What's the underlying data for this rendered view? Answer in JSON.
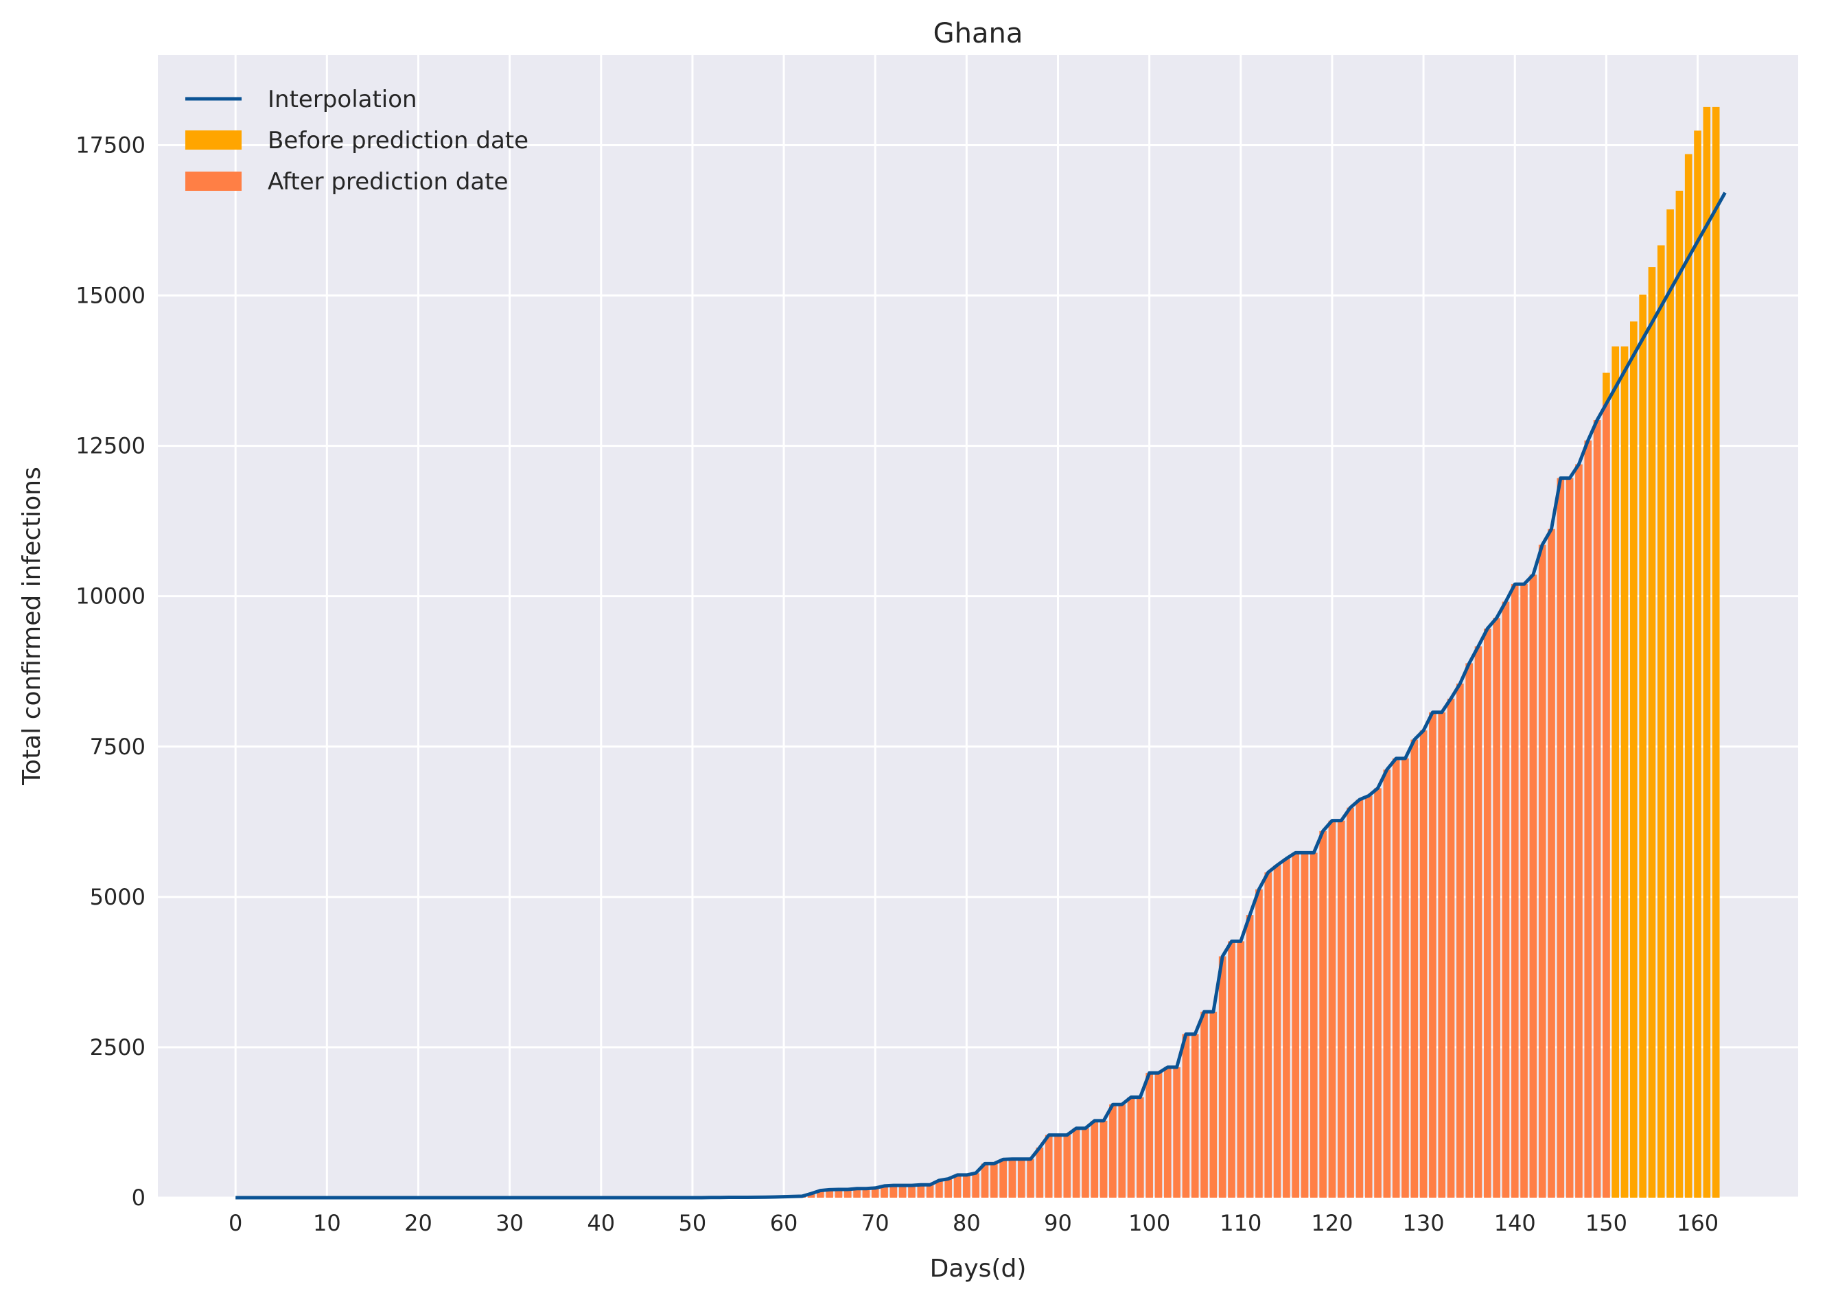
{
  "chart_data": {
    "type": "bar",
    "title": "Ghana",
    "xlabel": "Days(d)",
    "ylabel": "Total confirmed infections",
    "xlim": [
      -8.5,
      171
    ],
    "ylim": [
      0,
      19000
    ],
    "x_ticks": [
      0,
      10,
      20,
      30,
      40,
      50,
      60,
      70,
      80,
      90,
      100,
      110,
      120,
      130,
      140,
      150,
      160
    ],
    "y_ticks": [
      0,
      2500,
      5000,
      7500,
      10000,
      12500,
      15000,
      17500
    ],
    "grid": true,
    "legend_position": "upper-left",
    "prediction_start_day": 150,
    "colors": {
      "background": "#eaeaf2",
      "grid": "#ffffff",
      "line": "#0b5394",
      "before": "#ffa500",
      "after": "#ff7f45"
    },
    "legend": [
      {
        "label": "Interpolation",
        "kind": "line",
        "color": "#0b5394"
      },
      {
        "label": "Before prediction date",
        "kind": "patch",
        "color": "#ffa500"
      },
      {
        "label": "After prediction date",
        "kind": "patch",
        "color": "#ff7f45"
      }
    ],
    "series": [
      {
        "name": "Interpolation",
        "x_start": 0,
        "values": [
          0,
          0,
          0,
          0,
          0,
          0,
          0,
          0,
          0,
          0,
          0,
          0,
          0,
          0,
          0,
          0,
          0,
          0,
          0,
          0,
          0,
          0,
          0,
          0,
          0,
          0,
          0,
          0,
          0,
          0,
          0,
          0,
          0,
          0,
          0,
          0,
          0,
          0,
          0,
          0,
          0,
          0,
          0,
          0,
          0,
          0,
          0,
          0,
          0,
          0,
          0,
          0,
          2,
          3,
          6,
          6,
          6,
          7,
          9,
          11,
          16,
          19,
          24,
          68,
          119,
          132,
          137,
          137,
          152,
          152,
          161,
          195,
          204,
          204,
          204,
          214,
          214,
          287,
          313,
          378,
          378,
          408,
          566,
          566,
          636,
          641,
          641,
          641,
          834,
          1042,
          1042,
          1042,
          1154,
          1154,
          1279,
          1279,
          1550,
          1550,
          1671,
          1671,
          2074,
          2074,
          2169,
          2169,
          2719,
          2719,
          3091,
          3091,
          4012,
          4263,
          4263,
          4700,
          5127,
          5408,
          5530,
          5638,
          5735,
          5735,
          5735,
          6096,
          6269,
          6269,
          6486,
          6617,
          6683,
          6808,
          7117,
          7303,
          7303,
          7616,
          7768,
          8070,
          8070,
          8297,
          8548,
          8885,
          9168,
          9462,
          9638,
          9910,
          10201,
          10201,
          10358,
          10856,
          11118,
          11964,
          11964,
          12193,
          12590,
          12929,
          13200,
          13470,
          13740,
          14010,
          14280,
          14550,
          14820,
          15090,
          15360,
          15630,
          15900,
          16170,
          16440,
          16710
        ]
      },
      {
        "name": "Before prediction date",
        "x_start": 150,
        "values": [
          13717,
          14154,
          14154,
          14568,
          15013,
          15473,
          15834,
          16431,
          16742,
          17351,
          17741,
          18134,
          18134
        ]
      },
      {
        "name": "After prediction date",
        "x_start": 0,
        "values": [
          0,
          0,
          0,
          0,
          0,
          0,
          0,
          0,
          0,
          0,
          0,
          0,
          0,
          0,
          0,
          0,
          0,
          0,
          0,
          0,
          0,
          0,
          0,
          0,
          0,
          0,
          0,
          0,
          0,
          0,
          0,
          0,
          0,
          0,
          0,
          0,
          0,
          0,
          0,
          0,
          0,
          0,
          0,
          0,
          0,
          0,
          0,
          0,
          0,
          0,
          0,
          0,
          2,
          3,
          6,
          6,
          6,
          7,
          9,
          11,
          16,
          19,
          24,
          68,
          119,
          132,
          137,
          137,
          152,
          152,
          161,
          195,
          204,
          204,
          204,
          214,
          214,
          287,
          313,
          378,
          378,
          408,
          566,
          566,
          636,
          641,
          641,
          641,
          834,
          1042,
          1042,
          1042,
          1154,
          1154,
          1279,
          1279,
          1550,
          1550,
          1671,
          1671,
          2074,
          2074,
          2169,
          2169,
          2719,
          2719,
          3091,
          3091,
          4012,
          4263,
          4263,
          4700,
          5127,
          5408,
          5530,
          5638,
          5735,
          5735,
          5735,
          6096,
          6269,
          6269,
          6486,
          6617,
          6683,
          6808,
          7117,
          7303,
          7303,
          7616,
          7768,
          8070,
          8070,
          8297,
          8548,
          8885,
          9168,
          9462,
          9638,
          9910,
          10201,
          10201,
          10358,
          10856,
          11118,
          11964,
          11964,
          12193,
          12590,
          12929,
          13203
        ]
      }
    ]
  }
}
